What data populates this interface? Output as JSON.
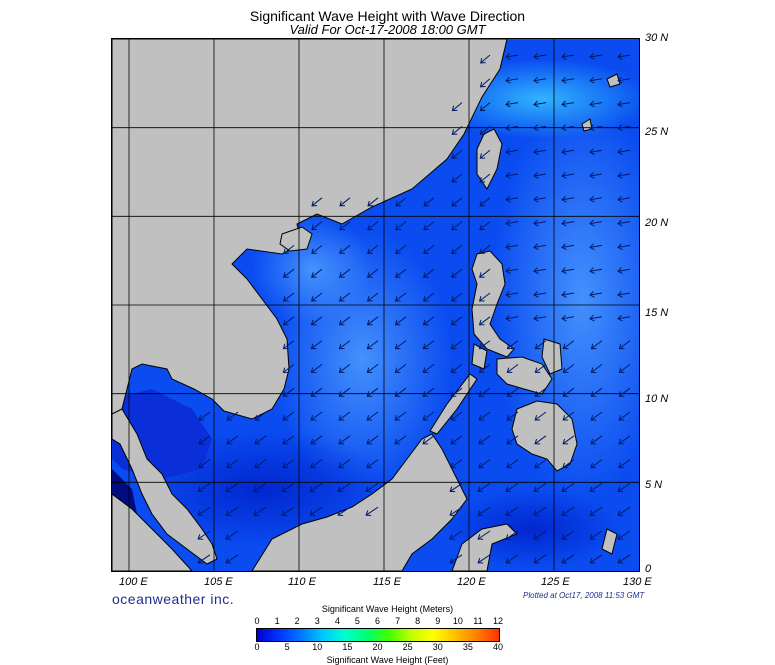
{
  "header": {
    "title": "Significant Wave Height with Wave Direction",
    "subtitle": "Valid For Oct-17-2008 18:00 GMT"
  },
  "map": {
    "lon_range": [
      99,
      130
    ],
    "lat_range": [
      0,
      30
    ],
    "lat_labels": [
      "30 N",
      "25 N",
      "20 N",
      "15 N",
      "10 N",
      "5 N",
      "0"
    ],
    "lon_labels": [
      "100 E",
      "105 E",
      "110 E",
      "115 E",
      "120 E",
      "125 E",
      "130 E"
    ],
    "colors": {
      "land": "#c0c0c0",
      "sea_deep": "#0044ee",
      "sea_mid": "#1a66ff",
      "sea_light": "#3a90ff",
      "sea_cyan": "#35b8ff",
      "gulf_dark": "#0012a8",
      "arrow": "#001a66"
    }
  },
  "footer": {
    "brand": "oceanweather inc.",
    "plotted": "Plotted at Oct17, 2008 11:53 GMT"
  },
  "colorbar": {
    "title_top": "Significant Wave Height (Meters)",
    "title_bottom": "Significant Wave Height (Feet)",
    "meters_ticks": [
      "0",
      "1",
      "2",
      "3",
      "4",
      "5",
      "6",
      "7",
      "8",
      "9",
      "10",
      "11",
      "12"
    ],
    "feet_ticks": [
      "0",
      "5",
      "10",
      "15",
      "20",
      "25",
      "30",
      "35",
      "40"
    ],
    "colors": [
      "#0000cc",
      "#0033ff",
      "#0077ff",
      "#00c8ff",
      "#00ffd0",
      "#00ff70",
      "#40ff00",
      "#c0ff00",
      "#ffff00",
      "#ffc000",
      "#ff8000",
      "#ff3000"
    ]
  }
}
